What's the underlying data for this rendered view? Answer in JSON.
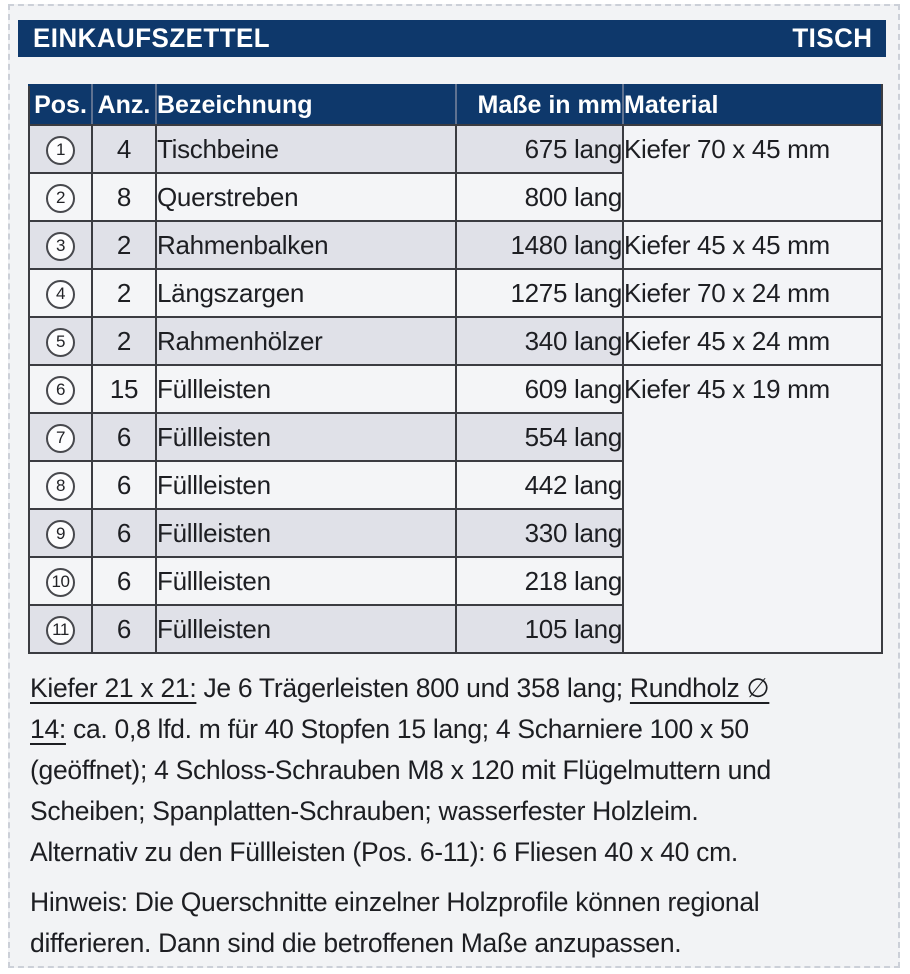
{
  "colors": {
    "navy": "#0e386b",
    "row_gray": "#e0e1e8",
    "row_light": "#f4f5f7",
    "material_bg": "#f3f4f7",
    "line": "#3b3c41",
    "ink": "#1d1e22",
    "page_bg": "#f2f3f5",
    "dash": "#ccd0d8"
  },
  "title_bar": {
    "left": "EINKAUFSZETTEL",
    "right": "TISCH"
  },
  "table": {
    "headers": {
      "pos": "Pos.",
      "anz": "Anz.",
      "bez": "Bezeichnung",
      "mass": "Maße in mm",
      "material": "Material"
    },
    "rows": [
      {
        "pos": "1",
        "anz": "4",
        "bez": "Tischbeine",
        "mass": "675 lang",
        "material": "Kiefer 70 x 45 mm",
        "material_rowspan": 2,
        "shade": "gray"
      },
      {
        "pos": "2",
        "anz": "8",
        "bez": "Querstreben",
        "mass": "800 lang",
        "shade": "light"
      },
      {
        "pos": "3",
        "anz": "2",
        "bez": "Rahmenbalken",
        "mass": "1480 lang",
        "material": "Kiefer 45 x 45 mm",
        "material_rowspan": 1,
        "shade": "gray"
      },
      {
        "pos": "4",
        "anz": "2",
        "bez": "Längszargen",
        "mass": "1275 lang",
        "material": "Kiefer 70 x 24 mm",
        "material_rowspan": 1,
        "shade": "light"
      },
      {
        "pos": "5",
        "anz": "2",
        "bez": "Rahmenhölzer",
        "mass": "340 lang",
        "material": "Kiefer 45 x 24 mm",
        "material_rowspan": 1,
        "shade": "gray"
      },
      {
        "pos": "6",
        "anz": "15",
        "bez": "Füllleisten",
        "mass": "609 lang",
        "material": "Kiefer 45 x 19 mm",
        "material_rowspan": 6,
        "shade": "light"
      },
      {
        "pos": "7",
        "anz": "6",
        "bez": "Füllleisten",
        "mass": "554 lang",
        "shade": "gray"
      },
      {
        "pos": "8",
        "anz": "6",
        "bez": "Füllleisten",
        "mass": "442 lang",
        "shade": "light"
      },
      {
        "pos": "9",
        "anz": "6",
        "bez": "Füllleisten",
        "mass": "330 lang",
        "shade": "gray"
      },
      {
        "pos": "10",
        "anz": "6",
        "bez": "Füllleisten",
        "mass": "218 lang",
        "shade": "light"
      },
      {
        "pos": "11",
        "anz": "6",
        "bez": "Füllleisten",
        "mass": "105 lang",
        "shade": "gray"
      }
    ]
  },
  "notes": {
    "paragraph1_lines": [
      {
        "segments": [
          {
            "text": "Kiefer 21 x 21:",
            "underline": true
          },
          {
            "text": " Je 6 Trägerleisten 800 und 358 lang; ",
            "underline": false
          },
          {
            "text": "Rundholz ∅",
            "underline": true
          }
        ]
      },
      {
        "segments": [
          {
            "text": "14:",
            "underline": true
          },
          {
            "text": " ca. 0,8 lfd. m für 40 Stopfen 15 lang; 4 Scharniere 100 x 50",
            "underline": false
          }
        ]
      },
      {
        "segments": [
          {
            "text": "(geöffnet); 4 Schloss-Schrauben M8 x 120 mit Flügelmuttern und",
            "underline": false
          }
        ]
      },
      {
        "segments": [
          {
            "text": "Scheiben; Spanplatten-Schrauben; wasserfester Holzleim.",
            "underline": false
          }
        ]
      },
      {
        "segments": [
          {
            "text": "Alternativ zu den Füllleisten (Pos. 6-11): 6 Fliesen 40 x 40 cm.",
            "underline": false
          }
        ]
      }
    ],
    "paragraph2_lines": [
      {
        "segments": [
          {
            "text": "Hinweis: Die Querschnitte einzelner Holzprofile können regional",
            "underline": false
          }
        ]
      },
      {
        "segments": [
          {
            "text": "differieren. Dann sind die betroffenen Maße anzupassen.",
            "underline": false
          }
        ]
      }
    ]
  }
}
